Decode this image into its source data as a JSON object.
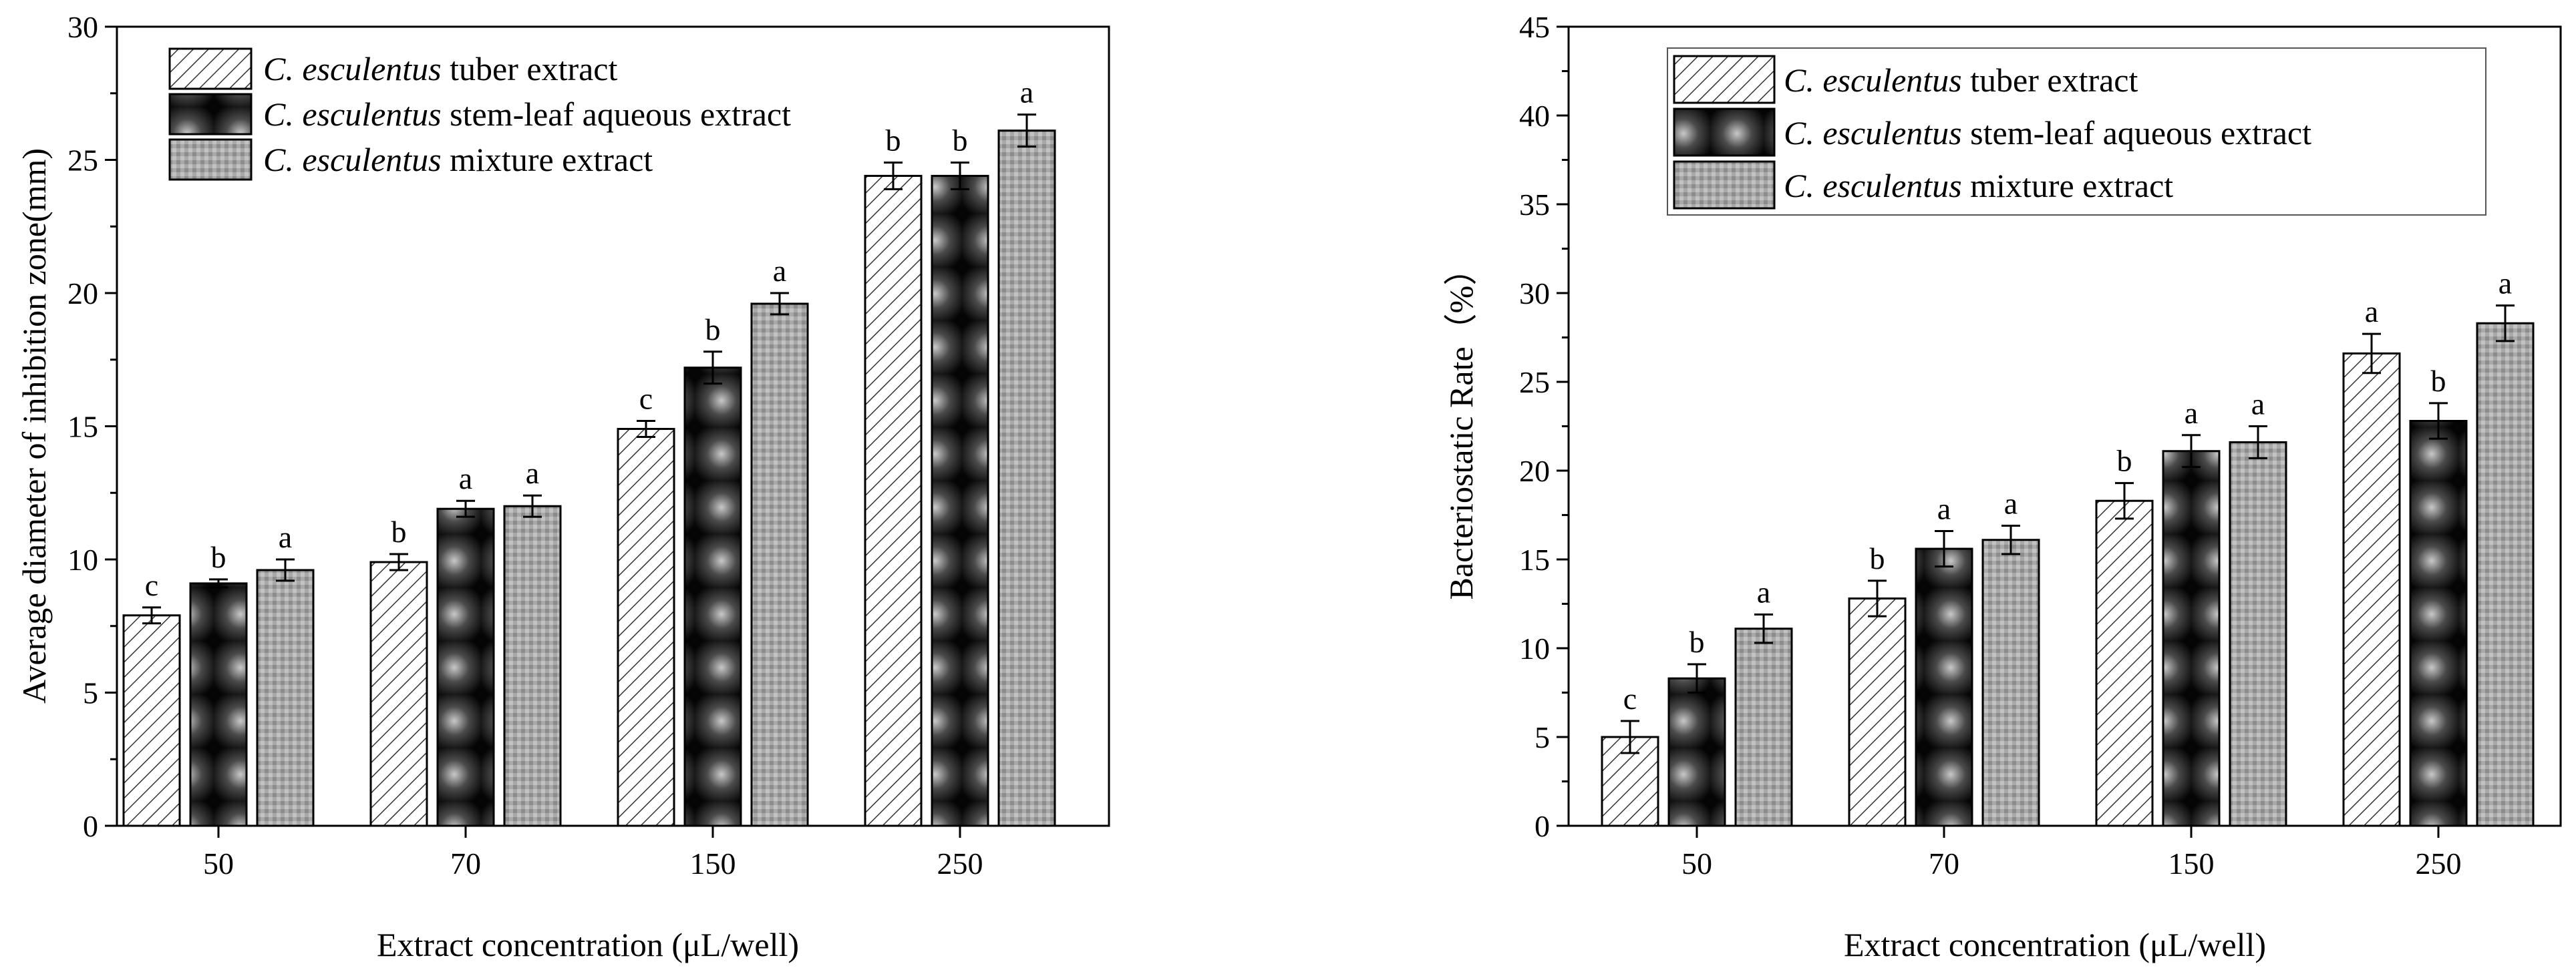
{
  "chart_data": [
    {
      "type": "bar",
      "xlabel": "Extract concentration (μL/well)",
      "ylabel": "Average diameter of inhibition zone(mm)",
      "ylim": [
        0,
        30
      ],
      "yticks": [
        "0",
        "5",
        "10",
        "15",
        "20",
        "25",
        "30"
      ],
      "categories": [
        "50",
        "70",
        "150",
        "250"
      ],
      "legend_position": "top-left",
      "series": [
        {
          "name": "C. esculentus tuber extract",
          "name_italic": "C. esculentus",
          "name_rest": " tuber extract",
          "pattern": "hatch",
          "values": [
            7.9,
            9.9,
            14.9,
            24.4
          ],
          "errors": [
            0.3,
            0.3,
            0.3,
            0.5
          ],
          "labels": [
            "c",
            "b",
            "c",
            "b"
          ]
        },
        {
          "name": "C. esculentus stem-leaf aqueous extract",
          "name_italic": "C. esculentus",
          "name_rest": " stem-leaf aqueous extract",
          "pattern": "dark",
          "values": [
            9.1,
            11.9,
            17.2,
            24.4
          ],
          "errors": [
            0.15,
            0.3,
            0.6,
            0.5
          ],
          "labels": [
            "b",
            "a",
            "b",
            "b"
          ]
        },
        {
          "name": "C. esculentus mixture extract",
          "name_italic": "C. esculentus",
          "name_rest": " mixture extract",
          "pattern": "gray",
          "values": [
            9.6,
            12.0,
            19.6,
            26.1
          ],
          "errors": [
            0.4,
            0.4,
            0.4,
            0.6
          ],
          "labels": [
            "a",
            "a",
            "a",
            "a"
          ]
        }
      ]
    },
    {
      "type": "bar",
      "xlabel": "Extract concentration (μL/well)",
      "ylabel": "Bacteriostatic Rate（%）",
      "ylim": [
        0,
        45
      ],
      "yticks": [
        "0",
        "5",
        "10",
        "15",
        "20",
        "25",
        "30",
        "35",
        "40",
        "45"
      ],
      "categories": [
        "50",
        "70",
        "150",
        "250"
      ],
      "legend_position": "top-right",
      "series": [
        {
          "name": "C. esculentus tuber extract",
          "name_italic": "C. esculentus",
          "name_rest": " tuber extract",
          "pattern": "hatch",
          "values": [
            5.0,
            12.8,
            18.3,
            26.6
          ],
          "errors": [
            0.9,
            1.0,
            1.0,
            1.1
          ],
          "labels": [
            "c",
            "b",
            "b",
            "a"
          ]
        },
        {
          "name": "C. esculentus stem-leaf aqueous extract",
          "name_italic": "C. esculentus",
          "name_rest": " stem-leaf aqueous extract",
          "pattern": "dark",
          "values": [
            8.3,
            15.6,
            21.1,
            22.8
          ],
          "errors": [
            0.8,
            1.0,
            0.9,
            1.0
          ],
          "labels": [
            "b",
            "a",
            "a",
            "b"
          ]
        },
        {
          "name": "C. esculentus mixture extract",
          "name_italic": "C. esculentus",
          "name_rest": " mixture extract",
          "pattern": "gray",
          "values": [
            11.1,
            16.1,
            21.6,
            28.3
          ],
          "errors": [
            0.8,
            0.8,
            0.9,
            1.0
          ],
          "labels": [
            "a",
            "a",
            "a",
            "a"
          ]
        }
      ]
    }
  ]
}
